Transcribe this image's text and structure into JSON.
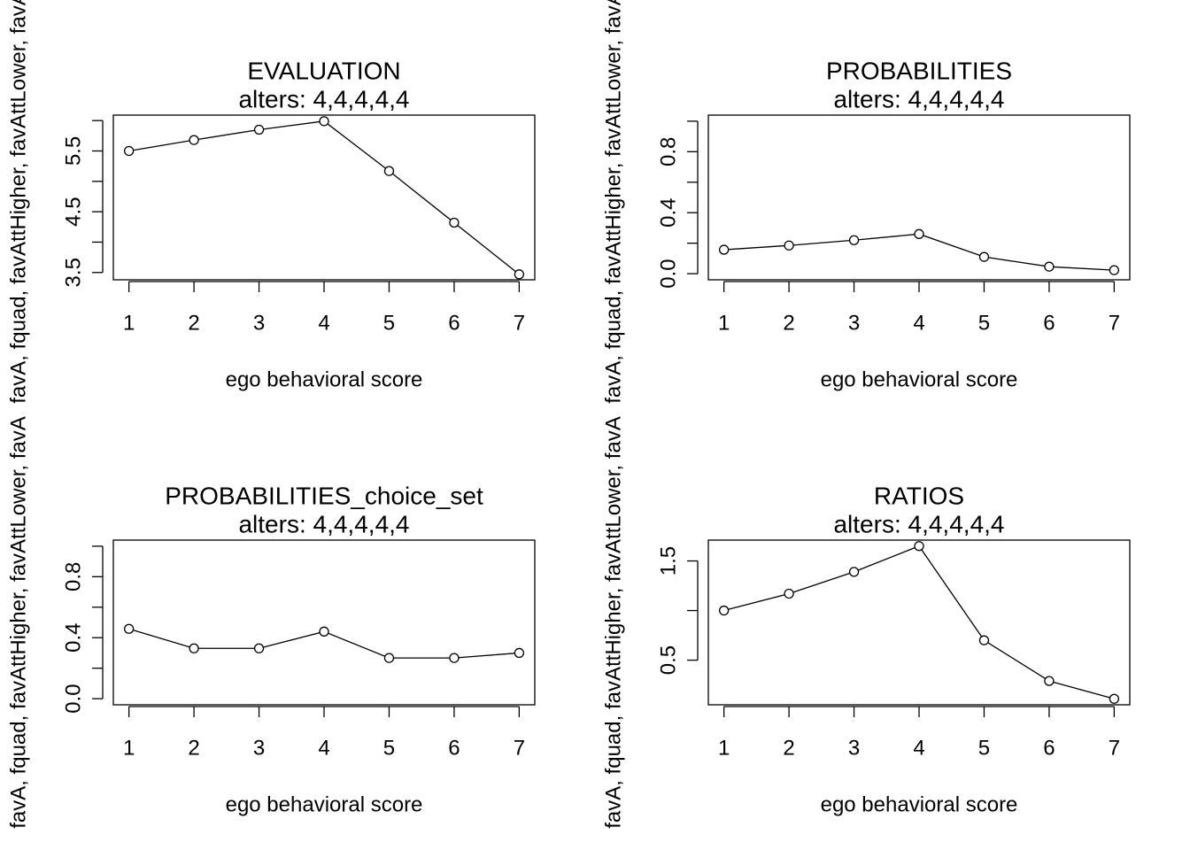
{
  "chart_data": [
    {
      "type": "line",
      "title": "EVALUATION",
      "subtitle": "alters: 4,4,4,4,4",
      "xlabel": "ego behavioral score",
      "ylabel": "favA, fquad, favAttHigher, favAttLower, favA",
      "x": [
        1,
        2,
        3,
        4,
        5,
        6,
        7
      ],
      "values": [
        5.5,
        5.68,
        5.85,
        5.99,
        5.17,
        4.32,
        3.47
      ],
      "color": "#000000",
      "xlim": [
        0.76,
        7.24
      ],
      "xticks": [
        1,
        2,
        3,
        4,
        5,
        6,
        7
      ],
      "ylim": [
        3.38,
        6.09
      ],
      "yticks": [
        3.5,
        4.5,
        5.5
      ],
      "yminorticks": [
        4,
        5,
        6
      ]
    },
    {
      "type": "line",
      "title": "PROBABILITIES",
      "subtitle": "alters: 4,4,4,4,4",
      "xlabel": "ego behavioral score",
      "ylabel": "favA, fquad, favAttHigher, favAttLower, favA",
      "x": [
        1,
        2,
        3,
        4,
        5,
        6,
        7
      ],
      "values": [
        0.157,
        0.185,
        0.22,
        0.26,
        0.11,
        0.046,
        0.023
      ],
      "color": "#000000",
      "xlim": [
        0.76,
        7.24
      ],
      "xticks": [
        1,
        2,
        3,
        4,
        5,
        6,
        7
      ],
      "ylim": [
        -0.04,
        1.04
      ],
      "yticks": [
        {
          "value": 0,
          "label": "0.0"
        },
        0.4,
        0.8
      ],
      "yminorticks": [
        0.2,
        0.6,
        1
      ]
    },
    {
      "type": "line",
      "title": "PROBABILITIES_choice_set",
      "subtitle": "alters: 4,4,4,4,4",
      "xlabel": "ego behavioral score",
      "ylabel": "favA, fquad, favAttHigher, favAttLower, favA",
      "x": [
        1,
        2,
        3,
        4,
        5,
        6,
        7
      ],
      "values": [
        0.458,
        0.33,
        0.33,
        0.44,
        0.267,
        0.267,
        0.3
      ],
      "color": "#000000",
      "xlim": [
        0.76,
        7.24
      ],
      "xticks": [
        1,
        2,
        3,
        4,
        5,
        6,
        7
      ],
      "ylim": [
        -0.04,
        1.04
      ],
      "yticks": [
        {
          "value": 0,
          "label": "0.0"
        },
        0.4,
        0.8
      ],
      "yminorticks": [
        0.2,
        0.6,
        1
      ]
    },
    {
      "type": "line",
      "title": "RATIOS",
      "subtitle": "alters: 4,4,4,4,4",
      "xlabel": "ego behavioral score",
      "ylabel": "favA, fquad, favAttHigher, favAttLower, favA",
      "x": [
        1,
        2,
        3,
        4,
        5,
        6,
        7
      ],
      "values": [
        1.0,
        1.17,
        1.39,
        1.65,
        0.7,
        0.29,
        0.11
      ],
      "color": "#000000",
      "xlim": [
        0.76,
        7.24
      ],
      "xticks": [
        1,
        2,
        3,
        4,
        5,
        6,
        7
      ],
      "ylim": [
        0.05,
        1.71
      ],
      "yticks": [
        0.5,
        1.5
      ],
      "yminorticks": [
        1
      ]
    }
  ]
}
